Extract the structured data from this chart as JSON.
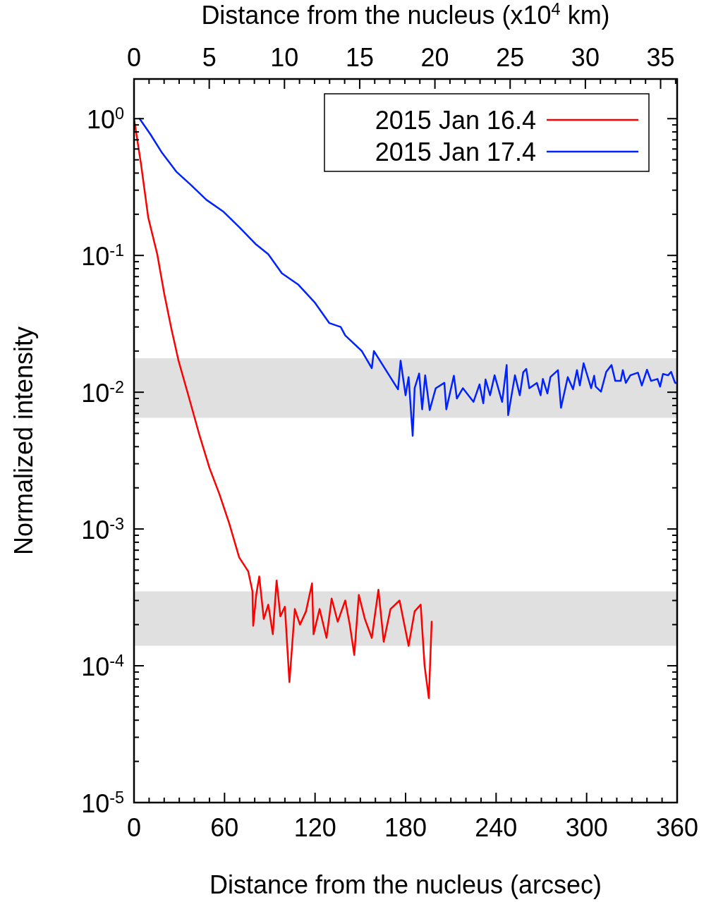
{
  "chart_data": {
    "type": "line",
    "xlabel": "Distance from the nucleus (arcsec)",
    "x2label": "Distance from the nucleus (x10$^{4}$ km)",
    "ylabel": "Normalized intensity",
    "log": "y",
    "grid": false,
    "legend": "top right",
    "marker": "none",
    "line_style": "solid",
    "xlim": [
      0,
      360
    ],
    "xticks": [
      0,
      {
        "value": 10,
        "label": null
      },
      {
        "value": 20,
        "label": null
      },
      {
        "value": 30,
        "label": null
      },
      {
        "value": 40,
        "label": null
      },
      {
        "value": 50,
        "label": null
      },
      60,
      {
        "value": 70,
        "label": null
      },
      {
        "value": 80,
        "label": null
      },
      {
        "value": 90,
        "label": null
      },
      {
        "value": 100,
        "label": null
      },
      {
        "value": 110,
        "label": null
      },
      120,
      {
        "value": 130,
        "label": null
      },
      {
        "value": 140,
        "label": null
      },
      {
        "value": 150,
        "label": null
      },
      {
        "value": 160,
        "label": null
      },
      {
        "value": 170,
        "label": null
      },
      180,
      {
        "value": 190,
        "label": null
      },
      {
        "value": 200,
        "label": null
      },
      {
        "value": 210,
        "label": null
      },
      {
        "value": 220,
        "label": null
      },
      {
        "value": 230,
        "label": null
      },
      240,
      {
        "value": 250,
        "label": null
      },
      {
        "value": 260,
        "label": null
      },
      {
        "value": 270,
        "label": null
      },
      {
        "value": 280,
        "label": null
      },
      {
        "value": 290,
        "label": null
      },
      300,
      {
        "value": 310,
        "label": null
      },
      {
        "value": 320,
        "label": null
      },
      {
        "value": 330,
        "label": null
      },
      {
        "value": 340,
        "label": null
      },
      {
        "value": 350,
        "label": null
      },
      360
    ],
    "x2lim": [
      0,
      36.1
    ],
    "x2ticks": [
      0,
      {
        "value": 1,
        "label": null
      },
      {
        "value": 2,
        "label": null
      },
      {
        "value": 3,
        "label": null
      },
      {
        "value": 4,
        "label": null
      },
      5,
      {
        "value": 6,
        "label": null
      },
      {
        "value": 7,
        "label": null
      },
      {
        "value": 8,
        "label": null
      },
      {
        "value": 9,
        "label": null
      },
      10,
      {
        "value": 11,
        "label": null
      },
      {
        "value": 12,
        "label": null
      },
      {
        "value": 13,
        "label": null
      },
      {
        "value": 14,
        "label": null
      },
      15,
      {
        "value": 16,
        "label": null
      },
      {
        "value": 17,
        "label": null
      },
      {
        "value": 18,
        "label": null
      },
      {
        "value": 19,
        "label": null
      },
      20,
      {
        "value": 21,
        "label": null
      },
      {
        "value": 22,
        "label": null
      },
      {
        "value": 23,
        "label": null
      },
      {
        "value": 24,
        "label": null
      },
      25,
      {
        "value": 26,
        "label": null
      },
      {
        "value": 27,
        "label": null
      },
      {
        "value": 28,
        "label": null
      },
      {
        "value": 29,
        "label": null
      },
      30,
      {
        "value": 31,
        "label": null
      },
      {
        "value": 32,
        "label": null
      },
      {
        "value": 33,
        "label": null
      },
      {
        "value": 34,
        "label": null
      },
      35,
      {
        "value": 36,
        "label": null
      }
    ],
    "ylim": [
      1e-05,
      1.95
    ],
    "yticks": [
      {
        "value": 1e-05,
        "label": "10$^{-5}$"
      },
      {
        "value": 2e-05,
        "label": null
      },
      {
        "value": 3e-05,
        "label": null
      },
      {
        "value": 4e-05,
        "label": null
      },
      {
        "value": 5e-05,
        "label": null
      },
      {
        "value": 6e-05,
        "label": null
      },
      {
        "value": 7e-05,
        "label": null
      },
      {
        "value": 8e-05,
        "label": null
      },
      {
        "value": 9e-05,
        "label": null
      },
      {
        "value": 0.0001,
        "label": "10$^{-4}$"
      },
      {
        "value": 0.0002,
        "label": null
      },
      {
        "value": 0.0003,
        "label": null
      },
      {
        "value": 0.0004,
        "label": null
      },
      {
        "value": 0.0005,
        "label": null
      },
      {
        "value": 0.0006,
        "label": null
      },
      {
        "value": 0.0007,
        "label": null
      },
      {
        "value": 0.0008,
        "label": null
      },
      {
        "value": 0.0009,
        "label": null
      },
      {
        "value": 0.001,
        "label": "10$^{-3}$"
      },
      {
        "value": 0.002,
        "label": null
      },
      {
        "value": 0.003,
        "label": null
      },
      {
        "value": 0.004,
        "label": null
      },
      {
        "value": 0.005,
        "label": null
      },
      {
        "value": 0.006,
        "label": null
      },
      {
        "value": 0.007,
        "label": null
      },
      {
        "value": 0.008,
        "label": null
      },
      {
        "value": 0.009,
        "label": null
      },
      {
        "value": 0.01,
        "label": "10$^{-2}$"
      },
      {
        "value": 0.02,
        "label": null
      },
      {
        "value": 0.03,
        "label": null
      },
      {
        "value": 0.04,
        "label": null
      },
      {
        "value": 0.05,
        "label": null
      },
      {
        "value": 0.06,
        "label": null
      },
      {
        "value": 0.07,
        "label": null
      },
      {
        "value": 0.08,
        "label": null
      },
      {
        "value": 0.09,
        "label": null
      },
      {
        "value": 0.1,
        "label": "10$^{-1}$"
      },
      {
        "value": 0.2,
        "label": null
      },
      {
        "value": 0.3,
        "label": null
      },
      {
        "value": 0.4,
        "label": null
      },
      {
        "value": 0.5,
        "label": null
      },
      {
        "value": 0.6,
        "label": null
      },
      {
        "value": 0.7,
        "label": null
      },
      {
        "value": 0.8,
        "label": null
      },
      {
        "value": 0.9,
        "label": null
      },
      {
        "value": 1,
        "label": "10$^{0}$"
      }
    ],
    "bands": [
      {
        "axis": "y",
        "from": 0.0065,
        "to": 0.0177,
        "color": "#e0e0e0"
      },
      {
        "axis": "y",
        "from": 0.00014,
        "to": 0.00035,
        "color": "#e0e0e0"
      }
    ],
    "series": [
      {
        "name": "2015 Jan 16.4",
        "color": "#ff0000",
        "x": [
          0,
          4.7,
          9.4,
          15.4,
          20.1,
          24.8,
          29.5,
          36,
          43.5,
          50,
          56.6,
          63.1,
          69.7,
          75.7,
          78.5,
          79,
          81,
          83,
          86,
          89,
          92,
          94.5,
          97,
          100,
          103,
          106.6,
          110,
          114,
          118,
          119,
          123,
          127.6,
          131,
          135,
          140,
          143,
          146,
          149,
          153,
          157.6,
          162,
          165.5,
          170,
          176,
          182,
          186,
          190,
          192.6,
          195.4,
          197.3
        ],
        "values": [
          1,
          0.46,
          0.19,
          0.102,
          0.052,
          0.029,
          0.017,
          0.0095,
          0.0048,
          0.0028,
          0.0018,
          0.0011,
          0.00062,
          0.00049,
          0.00035,
          0.000196,
          0.00033,
          0.00045,
          0.00022,
          0.00028,
          0.00017,
          0.00042,
          0.00023,
          0.00027,
          7.6e-05,
          0.00026,
          0.0002,
          0.00025,
          0.0004,
          0.00017,
          0.00026,
          0.00016,
          0.00031,
          0.00021,
          0.0003,
          0.0002,
          0.00012,
          0.00033,
          0.00022,
          0.00016,
          0.00036,
          0.00015,
          0.00026,
          0.0003,
          0.00014,
          0.00025,
          0.00028,
          0.0001,
          5.8e-05,
          0.00021
        ]
      },
      {
        "name": "2015 Jan 17.4",
        "color": "#0022ff",
        "x": [
          3.7,
          10.8,
          18.7,
          28,
          37.4,
          48,
          59,
          70,
          81,
          89,
          98,
          109,
          120,
          129.5,
          137,
          140,
          151,
          157.6,
          159,
          175,
          176.7,
          180,
          182,
          184.7,
          186,
          189,
          191,
          193,
          196,
          200,
          205.7,
          207,
          212,
          214,
          218,
          225,
          229,
          231.5,
          233,
          236,
          239,
          244,
          247,
          248,
          252.5,
          255.7,
          258,
          260,
          262,
          267,
          269.5,
          271,
          274,
          276,
          281,
          283,
          287.5,
          291,
          293.6,
          295.5,
          298,
          303,
          305,
          306,
          309.5,
          313,
          316.5,
          319,
          322.6,
          324,
          326,
          329,
          334,
          336.6,
          340,
          342.7,
          347,
          348.7,
          350.6,
          354,
          356,
          358.6,
          360
        ],
        "values": [
          1,
          0.77,
          0.56,
          0.41,
          0.33,
          0.255,
          0.21,
          0.16,
          0.12,
          0.102,
          0.074,
          0.061,
          0.045,
          0.032,
          0.03,
          0.026,
          0.02,
          0.015,
          0.02,
          0.0105,
          0.017,
          0.0095,
          0.0129,
          0.0048,
          0.0107,
          0.0137,
          0.0075,
          0.0133,
          0.0074,
          0.0107,
          0.0117,
          0.0075,
          0.0132,
          0.009,
          0.0107,
          0.0085,
          0.0114,
          0.0083,
          0.0124,
          0.0095,
          0.0133,
          0.0085,
          0.0158,
          0.0068,
          0.0133,
          0.0095,
          0.014,
          0.0148,
          0.0107,
          0.0117,
          0.0095,
          0.0125,
          0.0098,
          0.0129,
          0.0145,
          0.0077,
          0.0129,
          0.0105,
          0.0145,
          0.0112,
          0.0163,
          0.0107,
          0.0132,
          0.011,
          0.0101,
          0.0141,
          0.0158,
          0.0121,
          0.0121,
          0.0145,
          0.0117,
          0.0133,
          0.0139,
          0.0112,
          0.0146,
          0.0121,
          0.0125,
          0.011,
          0.0136,
          0.0133,
          0.0141,
          0.0117,
          0.0117
        ]
      }
    ]
  }
}
